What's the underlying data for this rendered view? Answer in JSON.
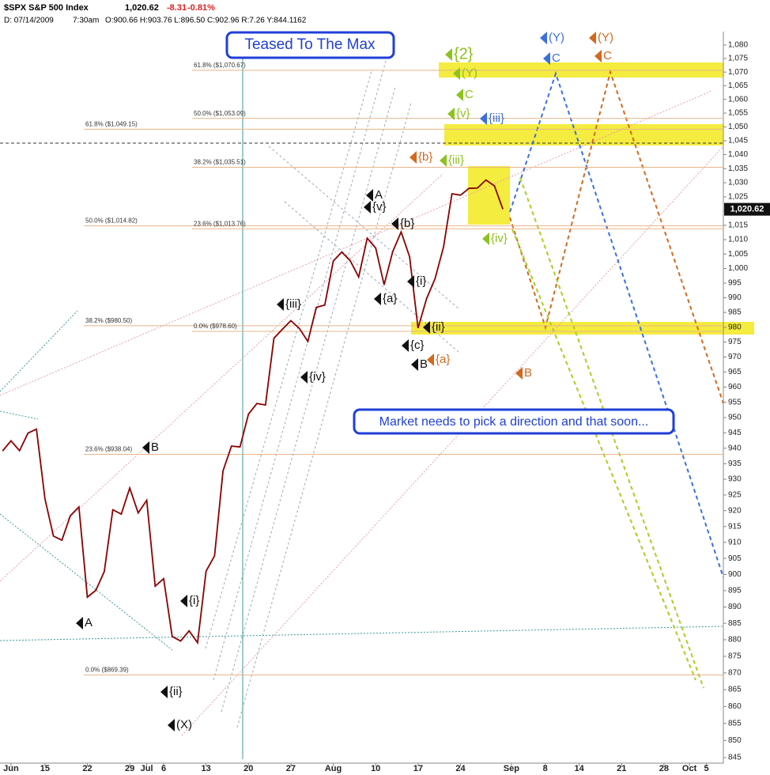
{
  "header": {
    "symbol": "$SPX S&P 500 Index",
    "last": "1,020.62",
    "change": "-8.31",
    "change_pct": "-0.81%",
    "date": "D: 07/14/2009",
    "time": "7:30am",
    "ohlc": "O:900.66 H:903.76 L:896.50 C:902.96 R:7.26 Y:844.1162"
  },
  "chart_data": {
    "type": "line",
    "log_scale": true,
    "grid": false,
    "color": "#8b0000",
    "x": [
      -5,
      -4,
      -3,
      -2,
      -1,
      0,
      1,
      2,
      3,
      4,
      5,
      6,
      7,
      8,
      9,
      10,
      11,
      12,
      13,
      14,
      15,
      16,
      17,
      18,
      19,
      20,
      21,
      22,
      23,
      24,
      25,
      26,
      27,
      28,
      29,
      30,
      31,
      32,
      33,
      34,
      35,
      36,
      37,
      38,
      39,
      40,
      41,
      42,
      43,
      44,
      45,
      46,
      47,
      48,
      49,
      50,
      51,
      52,
      53,
      54
    ],
    "values": [
      939.1,
      942.4,
      939.2,
      944.9,
      946.2,
      923.7,
      911.97,
      910.7,
      918.4,
      921.2,
      893.0,
      895.1,
      900.9,
      920.3,
      918.9,
      927.2,
      919.3,
      923.3,
      896.4,
      898.7,
      881.0,
      879.6,
      882.7,
      879.1,
      901.05,
      905.8,
      932.7,
      940.7,
      940.4,
      951.1,
      954.6,
      954.1,
      976.3,
      979.3,
      982.2,
      979.6,
      975.2,
      986.75,
      987.5,
      1002.6,
      1005.7,
      1002.7,
      997.1,
      1010.5,
      1007.1,
      994.4,
      1005.8,
      1012.7,
      1004.1,
      979.7,
      989.7,
      996.5,
      1007.4,
      1026.1,
      1025.6,
      1028.0,
      1028.1,
      1030.98,
      1028.9,
      1020.62
    ],
    "xlim": [
      -5.3,
      80
    ],
    "xticks": [
      {
        "value": -4,
        "label": "Jun"
      },
      {
        "value": 0,
        "label": "15"
      },
      {
        "value": 5,
        "label": "22"
      },
      {
        "value": 10,
        "label": "29"
      },
      {
        "value": 12,
        "label": "Jul"
      },
      {
        "value": 14,
        "label": "6"
      },
      {
        "value": 19,
        "label": "13"
      },
      {
        "value": 24,
        "label": "20"
      },
      {
        "value": 29,
        "label": "27"
      },
      {
        "value": 34,
        "label": "Aug"
      },
      {
        "value": 39,
        "label": "10"
      },
      {
        "value": 44,
        "label": "17"
      },
      {
        "value": 49,
        "label": "24"
      },
      {
        "value": 55,
        "label": "Sep"
      },
      {
        "value": 59,
        "label": "8"
      },
      {
        "value": 63,
        "label": "14"
      },
      {
        "value": 68,
        "label": "21"
      },
      {
        "value": 73,
        "label": "28"
      },
      {
        "value": 76,
        "label": "Oct"
      },
      {
        "value": 78,
        "label": "5"
      }
    ],
    "ylim": [
      845,
      1080
    ],
    "yticks": [
      845,
      850,
      855,
      860,
      865,
      870,
      875,
      880,
      885,
      890,
      895,
      900,
      905,
      910,
      915,
      920,
      925,
      930,
      935,
      940,
      945,
      950,
      955,
      960,
      965,
      970,
      975,
      980,
      985,
      990,
      995,
      {
        "value": 1000,
        "label": "1,000"
      },
      {
        "value": 1005,
        "label": "1,005"
      },
      {
        "value": 1010,
        "label": "1,010"
      },
      {
        "value": 1015,
        "label": "1,015"
      },
      {
        "value": 1020,
        "label": "1,020"
      },
      {
        "value": 1025,
        "label": "1,025"
      },
      {
        "value": 1030,
        "label": "1,030"
      },
      {
        "value": 1035,
        "label": "1,035"
      },
      {
        "value": 1040,
        "label": "1,040"
      },
      {
        "value": 1045,
        "label": "1,045"
      },
      {
        "value": 1050,
        "label": "1,050"
      },
      {
        "value": 1055,
        "label": "1,055"
      },
      {
        "value": 1060,
        "label": "1,060"
      },
      {
        "value": 1065,
        "label": "1,065"
      },
      {
        "value": 1070,
        "label": "1,070"
      },
      {
        "value": 1075,
        "label": "1,075"
      },
      {
        "value": 1080,
        "label": "1,080"
      }
    ],
    "last_price": {
      "value": 1020.62,
      "label": "1,020.62"
    },
    "fib_levels": [
      {
        "value": 1070.67,
        "label": "61.8% ($1,070.67)"
      },
      {
        "value": 1049.15,
        "label": "61.8% ($1,049.15)"
      },
      {
        "value": 1053.09,
        "label": "50.0% ($1,053.09)"
      },
      {
        "value": 1035.51,
        "label": "38.2% ($1,035.51)"
      },
      {
        "value": 1014.82,
        "label": "50.0% ($1,014.82)"
      },
      {
        "value": 1013.76,
        "label": "23.6% ($1,013.76)"
      },
      {
        "value": 980.5,
        "label": "38.2% ($980.50)"
      },
      {
        "value": 978.6,
        "label": "0.0% ($978.60)"
      },
      {
        "value": 938.04,
        "label": "23.6% ($938.04)"
      },
      {
        "value": 869.39,
        "label": "0.0% ($869.39)"
      }
    ],
    "callouts": [
      "Teased To The Max",
      "Market needs to pick a direction and that soon..."
    ],
    "annotations": [
      {
        "text": "A",
        "color": "#111111"
      },
      {
        "text": "B",
        "color": "#111111"
      },
      {
        "text": "{i}",
        "color": "#111111"
      },
      {
        "text": "{ii}",
        "color": "#111111"
      },
      {
        "text": "(X)",
        "color": "#111111"
      },
      {
        "text": "{iii}",
        "color": "#111111"
      },
      {
        "text": "{iv}",
        "color": "#111111"
      },
      {
        "text": "A",
        "color": "#111111"
      },
      {
        "text": "{v}",
        "color": "#111111"
      },
      {
        "text": "{b}",
        "color": "#111111"
      },
      {
        "text": "{a}",
        "color": "#111111"
      },
      {
        "text": "{i}",
        "color": "#111111"
      },
      {
        "text": "{ii}",
        "color": "#111111"
      },
      {
        "text": "{c}",
        "color": "#111111"
      },
      {
        "text": "B",
        "color": "#111111"
      },
      {
        "text": "{b}",
        "color": "#d2691e"
      },
      {
        "text": "{a}",
        "color": "#d2691e"
      },
      {
        "text": "B",
        "color": "#d2691e"
      },
      {
        "text": "(Y)",
        "color": "#d2691e"
      },
      {
        "text": "C",
        "color": "#d2691e"
      },
      {
        "text": "{2}",
        "color": "#8dc21f"
      },
      {
        "text": "(Y)",
        "color": "#8dc21f"
      },
      {
        "text": "C",
        "color": "#8dc21f"
      },
      {
        "text": "{v}",
        "color": "#8dc21f"
      },
      {
        "text": "{iii}",
        "color": "#8dc21f"
      },
      {
        "text": "{iv}",
        "color": "#8dc21f"
      },
      {
        "text": "(Y)",
        "color": "#3b6fe0"
      },
      {
        "text": "C",
        "color": "#3b6fe0"
      },
      {
        "text": "{iii}",
        "color": "#3b6fe0"
      }
    ]
  }
}
